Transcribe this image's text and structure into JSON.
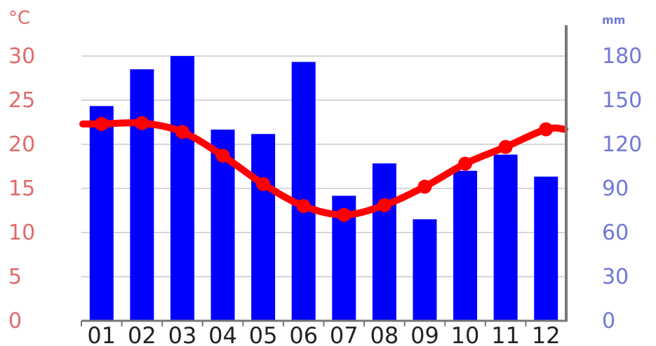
{
  "chart_data": {
    "type": "bar",
    "categories": [
      "01",
      "02",
      "03",
      "04",
      "05",
      "06",
      "07",
      "08",
      "09",
      "10",
      "11",
      "12"
    ],
    "series": [
      {
        "type": "bar",
        "axis": "right",
        "values": [
          146,
          171,
          180,
          130,
          127,
          176,
          85,
          107,
          69,
          102,
          113,
          98
        ]
      },
      {
        "type": "line",
        "axis": "left",
        "values": [
          22.3,
          22.4,
          21.4,
          18.7,
          15.5,
          13.0,
          12.0,
          13.1,
          15.2,
          17.8,
          19.7,
          21.7
        ]
      }
    ],
    "y_left": {
      "unit": "°C",
      "range": [
        0,
        30
      ],
      "ticks": [
        "0",
        "5",
        "10",
        "15",
        "20",
        "25",
        "30"
      ],
      "color": "#e06a6a"
    },
    "y_right": {
      "unit": "mm",
      "range": [
        0,
        180
      ],
      "ticks": [
        "0",
        "30",
        "60",
        "90",
        "120",
        "150",
        "180"
      ],
      "color": "#6f78d6"
    },
    "bar_color": "#0000ff",
    "line_color": "#ff0000",
    "grid": true
  }
}
